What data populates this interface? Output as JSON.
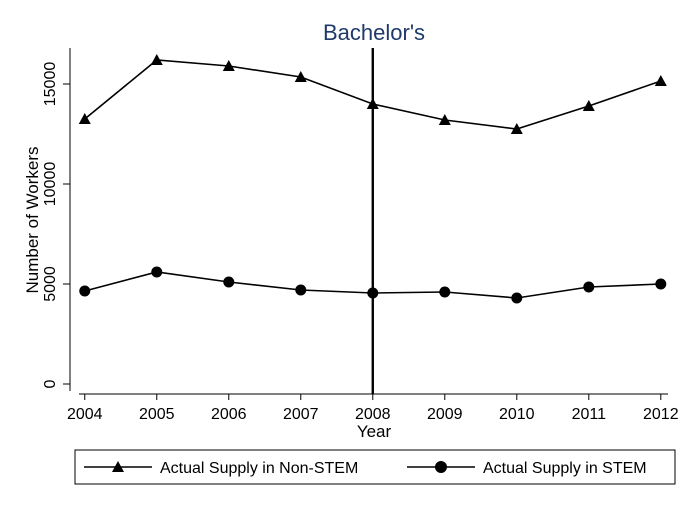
{
  "chart_data": {
    "type": "line",
    "title": "Bachelor's",
    "xlabel": "Year",
    "ylabel": "Number of Workers",
    "x": [
      2004,
      2005,
      2006,
      2007,
      2008,
      2009,
      2010,
      2011,
      2012
    ],
    "x_ticks": [
      "2004",
      "2005",
      "2006",
      "2007",
      "2008",
      "2009",
      "2010",
      "2011",
      "2012"
    ],
    "y_ticks": [
      "0",
      "5000",
      "10000",
      "15000"
    ],
    "ylim": [
      -500,
      16800
    ],
    "xlim": [
      2003.92,
      2012.1
    ],
    "grid": false,
    "reference_line_x": 2008,
    "legend_position": "bottom",
    "series": [
      {
        "name": "Actual Supply in Non-STEM",
        "marker": "triangle",
        "values": [
          13250,
          16200,
          15900,
          15350,
          14000,
          13200,
          12750,
          13900,
          15150
        ]
      },
      {
        "name": "Actual Supply in STEM",
        "marker": "circle",
        "values": [
          4650,
          5600,
          5100,
          4700,
          4550,
          4600,
          4300,
          4850,
          5000
        ]
      }
    ]
  }
}
